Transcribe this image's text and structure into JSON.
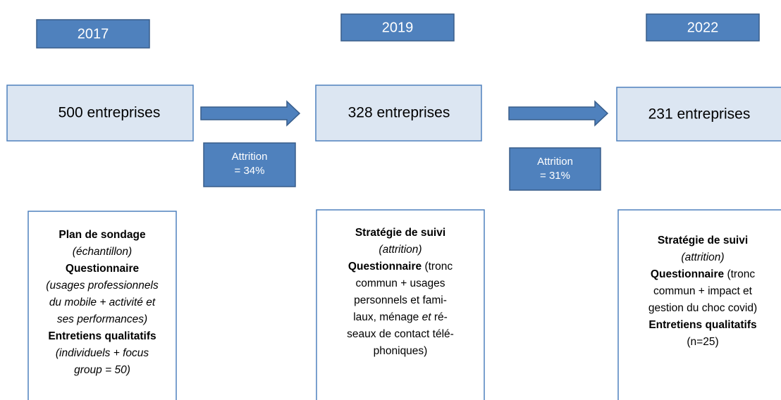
{
  "years": [
    "2017",
    "2019",
    "2022"
  ],
  "stages": [
    "500 entreprises",
    "328 entreprises",
    "231 entreprises"
  ],
  "attrition": [
    [
      "Attrition",
      "= 34%"
    ],
    [
      "Attrition",
      "= 31%"
    ]
  ],
  "details": [
    [
      [
        {
          "text": "Plan de sondage",
          "style": "bold"
        }
      ],
      [
        {
          "text": "(échantillon)",
          "style": "italic"
        }
      ],
      [
        {
          "text": "Questionnaire",
          "style": "bold"
        }
      ],
      [
        {
          "text": "(usages professionnels",
          "style": "italic"
        }
      ],
      [
        {
          "text": "du mobile + activité et",
          "style": "italic"
        }
      ],
      [
        {
          "text": "ses performances)",
          "style": "italic"
        }
      ],
      [
        {
          "text": "Entretiens qualitatifs",
          "style": "bold"
        }
      ],
      [
        {
          "text": "(individuels + focus",
          "style": "italic"
        }
      ],
      [
        {
          "text": "group = 50)",
          "style": "italic"
        }
      ]
    ],
    [
      [
        {
          "text": "Stratégie de suivi",
          "style": "bold"
        }
      ],
      [
        {
          "text": "(attrition)",
          "style": "italic"
        }
      ],
      [
        {
          "text": "Questionnaire",
          "style": "bold"
        },
        {
          "text": " (tronc"
        }
      ],
      [
        {
          "text": "commun + usages"
        }
      ],
      [
        {
          "text": "personnels et fami-"
        }
      ],
      [
        {
          "text": "laux, ménage "
        },
        {
          "text": "et",
          "style": "italic"
        },
        {
          "text": " ré-"
        }
      ],
      [
        {
          "text": "seaux de contact télé-"
        }
      ],
      [
        {
          "text": "phoniques)"
        }
      ]
    ],
    [
      [
        {
          "text": "Stratégie de suivi",
          "style": "bold"
        }
      ],
      [
        {
          "text": "(attrition)",
          "style": "italic"
        }
      ],
      [
        {
          "text": "Questionnaire",
          "style": "bold"
        },
        {
          "text": " (tronc"
        }
      ],
      [
        {
          "text": "commun + impact et"
        }
      ],
      [
        {
          "text": "gestion du choc covid)"
        }
      ],
      [
        {
          "text": "Entretiens qualitatifs",
          "style": "bold"
        }
      ],
      [
        {
          "text": "(n=25)"
        }
      ]
    ]
  ]
}
